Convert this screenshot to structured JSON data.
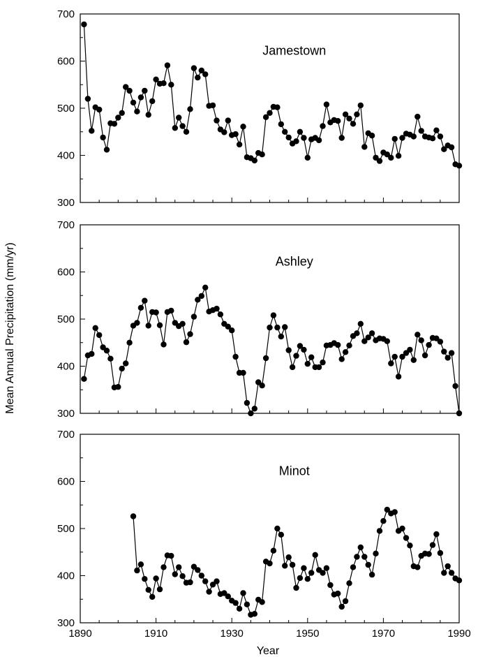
{
  "figure": {
    "ylabel": "Mean Annual Precipitation (mm/yr)",
    "xlabel": "Year"
  },
  "chart_data": [
    {
      "type": "line",
      "title": "Jamestown",
      "xlabel": "Year",
      "ylabel": "Mean Annual Precipitation (mm/yr)",
      "xlim": [
        1890,
        1990
      ],
      "ylim": [
        300,
        700
      ],
      "yticks": [
        300,
        400,
        500,
        600,
        700
      ],
      "xticks": [
        1890,
        1910,
        1930,
        1950,
        1970,
        1990
      ],
      "show_x_tick_labels": false,
      "grid": false,
      "series": [
        {
          "x": [
            1891,
            1892,
            1893,
            1894,
            1895,
            1896,
            1897,
            1898,
            1899,
            1900,
            1901,
            1902,
            1903,
            1904,
            1905,
            1906,
            1907,
            1908,
            1909,
            1910,
            1911,
            1912,
            1913,
            1914,
            1915,
            1916,
            1917,
            1918,
            1919,
            1920,
            1921,
            1922,
            1923,
            1924,
            1925,
            1926,
            1927,
            1928,
            1929,
            1930,
            1931,
            1932,
            1933,
            1934,
            1935,
            1936,
            1937,
            1938,
            1939,
            1940,
            1941,
            1942,
            1943,
            1944,
            1945,
            1946,
            1947,
            1948,
            1949,
            1950,
            1951,
            1952,
            1953,
            1954,
            1955,
            1956,
            1957,
            1958,
            1959,
            1960,
            1961,
            1962,
            1963,
            1964,
            1965,
            1966,
            1967,
            1968,
            1969,
            1970,
            1971,
            1972,
            1973,
            1974,
            1975,
            1976,
            1977,
            1978,
            1979,
            1980,
            1981,
            1982,
            1983,
            1984,
            1985,
            1986,
            1987,
            1988,
            1989,
            1990
          ],
          "y": [
            678,
            520,
            452,
            502,
            497,
            438,
            412,
            468,
            467,
            480,
            490,
            545,
            537,
            512,
            493,
            523,
            537,
            486,
            515,
            561,
            552,
            553,
            591,
            550,
            458,
            480,
            462,
            450,
            498,
            585,
            565,
            580,
            572,
            505,
            506,
            474,
            455,
            449,
            474,
            443,
            445,
            423,
            461,
            396,
            394,
            389,
            405,
            402,
            481,
            490,
            503,
            502,
            466,
            450,
            438,
            425,
            430,
            450,
            437,
            395,
            434,
            437,
            432,
            462,
            508,
            470,
            475,
            473,
            437,
            487,
            478,
            467,
            487,
            506,
            418,
            447,
            442,
            395,
            388,
            406,
            402,
            395,
            435,
            399,
            437,
            446,
            444,
            440,
            482,
            452,
            440,
            438,
            436,
            453,
            440,
            413,
            421,
            417,
            381,
            378
          ]
        }
      ]
    },
    {
      "type": "line",
      "title": "Ashley",
      "xlabel": "Year",
      "ylabel": "Mean Annual Precipitation (mm/yr)",
      "xlim": [
        1890,
        1990
      ],
      "ylim": [
        300,
        700
      ],
      "yticks": [
        300,
        400,
        500,
        600,
        700
      ],
      "xticks": [
        1890,
        1910,
        1930,
        1950,
        1970,
        1990
      ],
      "show_x_tick_labels": false,
      "grid": false,
      "series": [
        {
          "x": [
            1891,
            1892,
            1893,
            1894,
            1895,
            1896,
            1897,
            1898,
            1899,
            1900,
            1901,
            1902,
            1903,
            1904,
            1905,
            1906,
            1907,
            1908,
            1909,
            1910,
            1911,
            1912,
            1913,
            1914,
            1915,
            1916,
            1917,
            1918,
            1919,
            1920,
            1921,
            1922,
            1923,
            1924,
            1925,
            1926,
            1927,
            1928,
            1929,
            1930,
            1931,
            1932,
            1933,
            1934,
            1935,
            1936,
            1937,
            1938,
            1939,
            1940,
            1941,
            1942,
            1943,
            1944,
            1945,
            1946,
            1947,
            1948,
            1949,
            1950,
            1951,
            1952,
            1953,
            1954,
            1955,
            1956,
            1957,
            1958,
            1959,
            1960,
            1961,
            1962,
            1963,
            1964,
            1965,
            1966,
            1967,
            1968,
            1969,
            1970,
            1971,
            1972,
            1973,
            1974,
            1975,
            1976,
            1977,
            1978,
            1979,
            1980,
            1981,
            1982,
            1983,
            1984,
            1985,
            1986,
            1987,
            1988,
            1989,
            1990
          ],
          "y": [
            373,
            423,
            426,
            481,
            466,
            440,
            433,
            416,
            355,
            356,
            395,
            406,
            450,
            486,
            492,
            524,
            539,
            486,
            515,
            514,
            487,
            446,
            515,
            518,
            492,
            485,
            490,
            451,
            468,
            505,
            541,
            549,
            567,
            516,
            519,
            522,
            510,
            490,
            484,
            476,
            420,
            386,
            386,
            322,
            300,
            310,
            366,
            359,
            417,
            482,
            508,
            482,
            463,
            483,
            434,
            398,
            422,
            443,
            435,
            405,
            419,
            398,
            398,
            408,
            444,
            445,
            449,
            445,
            415,
            430,
            444,
            464,
            470,
            490,
            453,
            461,
            470,
            455,
            459,
            458,
            453,
            406,
            420,
            378,
            420,
            428,
            435,
            413,
            467,
            455,
            423,
            445,
            460,
            459,
            452,
            431,
            418,
            428,
            358,
            300
          ]
        }
      ]
    },
    {
      "type": "line",
      "title": "Minot",
      "xlabel": "Year",
      "ylabel": "Mean Annual Precipitation (mm/yr)",
      "xlim": [
        1890,
        1990
      ],
      "ylim": [
        300,
        700
      ],
      "yticks": [
        300,
        400,
        500,
        600,
        700
      ],
      "xticks": [
        1890,
        1910,
        1930,
        1950,
        1970,
        1990
      ],
      "show_x_tick_labels": true,
      "grid": false,
      "series": [
        {
          "x": [
            1904,
            1905,
            1906,
            1907,
            1908,
            1909,
            1910,
            1911,
            1912,
            1913,
            1914,
            1915,
            1916,
            1917,
            1918,
            1919,
            1920,
            1921,
            1922,
            1923,
            1924,
            1925,
            1926,
            1927,
            1928,
            1929,
            1930,
            1931,
            1932,
            1933,
            1934,
            1935,
            1936,
            1937,
            1938,
            1939,
            1940,
            1941,
            1942,
            1943,
            1944,
            1945,
            1946,
            1947,
            1948,
            1949,
            1950,
            1951,
            1952,
            1953,
            1954,
            1955,
            1956,
            1957,
            1958,
            1959,
            1960,
            1961,
            1962,
            1963,
            1964,
            1965,
            1966,
            1967,
            1968,
            1969,
            1970,
            1971,
            1972,
            1973,
            1974,
            1975,
            1976,
            1977,
            1978,
            1979,
            1980,
            1981,
            1982,
            1983,
            1984,
            1985,
            1986,
            1987,
            1988,
            1989,
            1990
          ],
          "y": [
            526,
            411,
            424,
            393,
            370,
            355,
            394,
            371,
            418,
            443,
            442,
            403,
            418,
            399,
            385,
            386,
            419,
            412,
            400,
            388,
            366,
            381,
            388,
            361,
            363,
            356,
            347,
            342,
            330,
            363,
            339,
            317,
            319,
            349,
            344,
            430,
            426,
            453,
            500,
            487,
            421,
            439,
            423,
            374,
            395,
            416,
            393,
            406,
            444,
            412,
            406,
            416,
            380,
            360,
            362,
            334,
            346,
            384,
            418,
            440,
            460,
            440,
            423,
            402,
            447,
            495,
            516,
            540,
            532,
            535,
            495,
            500,
            480,
            464,
            420,
            418,
            442,
            447,
            446,
            465,
            488,
            448,
            406,
            420,
            406,
            394,
            390
          ]
        }
      ]
    }
  ]
}
